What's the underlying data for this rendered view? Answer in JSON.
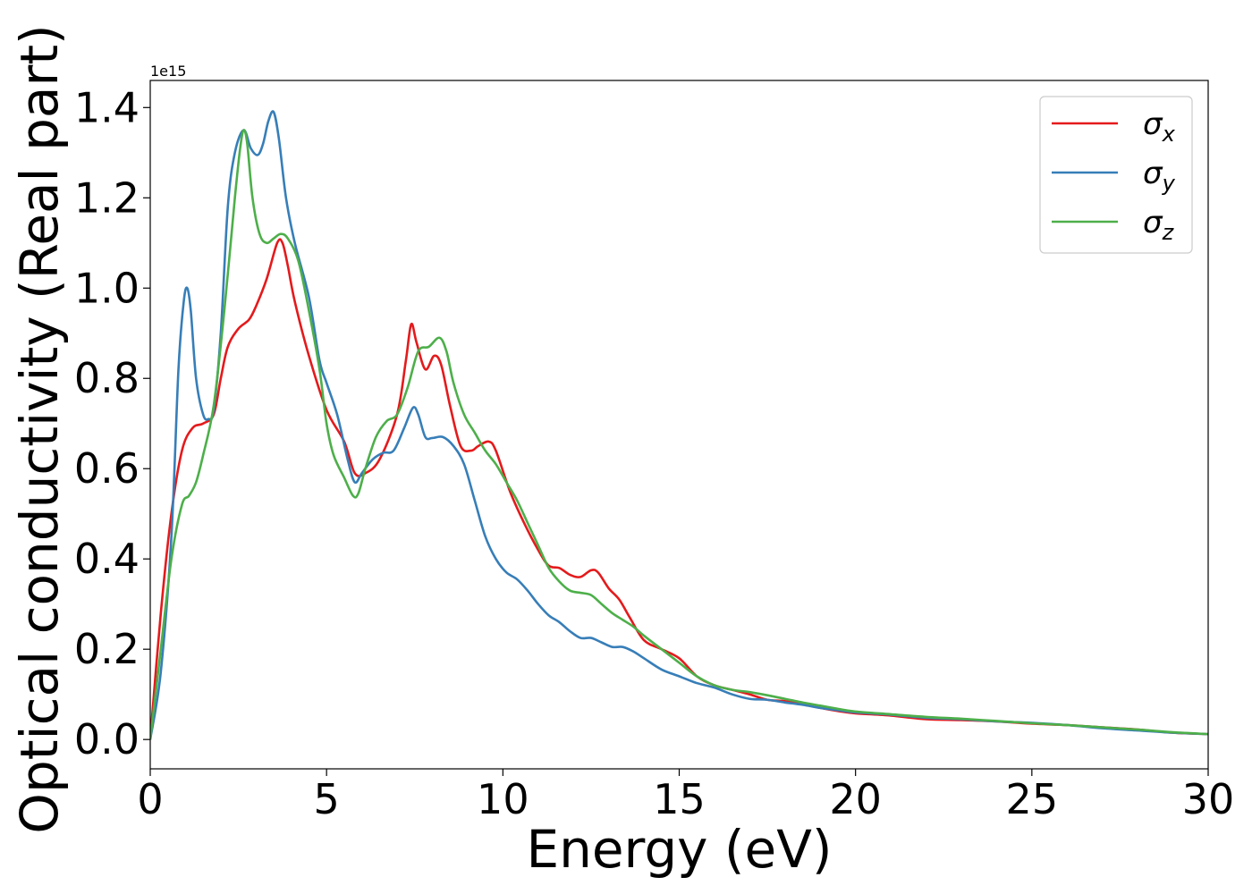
{
  "chart_data": {
    "type": "line",
    "xlabel": "Energy (eV)",
    "ylabel": "Optical conductivity (Real part)",
    "y_offset_text": "1e15",
    "xlim": [
      0,
      30
    ],
    "ylim": [
      -0.065,
      1.46
    ],
    "x_ticks": [
      "0",
      "5",
      "10",
      "15",
      "20",
      "25",
      "30"
    ],
    "y_ticks": [
      "0.0",
      "0.2",
      "0.4",
      "0.6",
      "0.8",
      "1.0",
      "1.2",
      "1.4"
    ],
    "grid": false,
    "legend_position": "top-right",
    "series": [
      {
        "name": "σx",
        "symbol": "σ",
        "subscript": "x",
        "color": "#e41a1c",
        "x": [
          0,
          0.3,
          0.6,
          0.9,
          1.2,
          1.5,
          1.8,
          2.0,
          2.2,
          2.5,
          2.8,
          3.0,
          3.3,
          3.6,
          3.75,
          3.9,
          4.1,
          4.5,
          5.0,
          5.5,
          5.8,
          6.1,
          6.5,
          7.0,
          7.25,
          7.4,
          7.55,
          7.8,
          8.05,
          8.25,
          8.5,
          8.8,
          9.1,
          9.3,
          9.6,
          9.8,
          10.2,
          10.6,
          11.0,
          11.3,
          11.6,
          11.9,
          12.2,
          12.5,
          12.7,
          13.0,
          13.3,
          13.6,
          14.0,
          14.5,
          15.0,
          15.5,
          16.0,
          16.5,
          17.0,
          17.5,
          18.0,
          18.5,
          19.0,
          19.5,
          20.0,
          21.0,
          22.0,
          23.0,
          24.0,
          25.0,
          26.0,
          27.0,
          28.0,
          29.0,
          30.0
        ],
        "values": [
          0.0,
          0.28,
          0.5,
          0.64,
          0.69,
          0.7,
          0.72,
          0.8,
          0.87,
          0.91,
          0.93,
          0.96,
          1.02,
          1.1,
          1.1,
          1.05,
          0.97,
          0.85,
          0.73,
          0.66,
          0.59,
          0.59,
          0.62,
          0.72,
          0.84,
          0.92,
          0.88,
          0.82,
          0.85,
          0.83,
          0.74,
          0.65,
          0.64,
          0.65,
          0.66,
          0.64,
          0.55,
          0.48,
          0.42,
          0.385,
          0.38,
          0.365,
          0.36,
          0.375,
          0.37,
          0.335,
          0.31,
          0.27,
          0.22,
          0.2,
          0.18,
          0.14,
          0.12,
          0.11,
          0.1,
          0.088,
          0.085,
          0.078,
          0.07,
          0.063,
          0.058,
          0.053,
          0.045,
          0.043,
          0.04,
          0.035,
          0.032,
          0.027,
          0.022,
          0.015,
          0.012
        ]
      },
      {
        "name": "σy",
        "symbol": "σ",
        "subscript": "y",
        "color": "#377eb8",
        "x": [
          0,
          0.3,
          0.6,
          0.8,
          0.95,
          1.05,
          1.15,
          1.3,
          1.5,
          1.65,
          1.8,
          2.0,
          2.2,
          2.4,
          2.65,
          2.85,
          3.05,
          3.2,
          3.35,
          3.5,
          3.65,
          3.85,
          4.1,
          4.5,
          4.8,
          5.0,
          5.3,
          5.6,
          5.8,
          6.0,
          6.3,
          6.6,
          6.9,
          7.2,
          7.45,
          7.6,
          7.8,
          8.0,
          8.3,
          8.6,
          8.9,
          9.2,
          9.5,
          9.8,
          10.1,
          10.4,
          10.7,
          11.0,
          11.3,
          11.6,
          11.9,
          12.2,
          12.5,
          12.8,
          13.1,
          13.4,
          13.7,
          14.0,
          14.5,
          15.0,
          15.5,
          16.0,
          16.5,
          17.0,
          17.5,
          18.0,
          18.5,
          19.0,
          19.5,
          20.0,
          21.0,
          22.0,
          23.0,
          24.0,
          25.0,
          26.0,
          27.0,
          28.0,
          29.0,
          30.0
        ],
        "values": [
          0.0,
          0.15,
          0.45,
          0.82,
          0.97,
          1.0,
          0.95,
          0.8,
          0.72,
          0.71,
          0.73,
          0.9,
          1.18,
          1.3,
          1.35,
          1.31,
          1.295,
          1.32,
          1.37,
          1.39,
          1.33,
          1.2,
          1.1,
          0.98,
          0.84,
          0.79,
          0.72,
          0.62,
          0.57,
          0.59,
          0.62,
          0.635,
          0.64,
          0.69,
          0.735,
          0.72,
          0.67,
          0.668,
          0.67,
          0.65,
          0.61,
          0.53,
          0.45,
          0.4,
          0.37,
          0.355,
          0.33,
          0.3,
          0.275,
          0.26,
          0.24,
          0.225,
          0.225,
          0.215,
          0.205,
          0.205,
          0.195,
          0.18,
          0.155,
          0.14,
          0.125,
          0.115,
          0.1,
          0.09,
          0.088,
          0.082,
          0.077,
          0.07,
          0.065,
          0.06,
          0.055,
          0.048,
          0.045,
          0.04,
          0.037,
          0.032,
          0.025,
          0.02,
          0.015,
          0.012
        ]
      },
      {
        "name": "σz",
        "symbol": "σ",
        "subscript": "z",
        "color": "#4daf4a",
        "x": [
          0,
          0.3,
          0.6,
          0.9,
          1.1,
          1.3,
          1.5,
          1.8,
          2.1,
          2.4,
          2.55,
          2.65,
          2.75,
          2.9,
          3.1,
          3.3,
          3.5,
          3.7,
          3.9,
          4.2,
          4.5,
          4.8,
          5.0,
          5.2,
          5.5,
          5.75,
          5.9,
          6.1,
          6.4,
          6.7,
          7.0,
          7.3,
          7.6,
          7.9,
          8.2,
          8.4,
          8.6,
          8.9,
          9.2,
          9.5,
          9.8,
          10.1,
          10.4,
          10.7,
          11.0,
          11.3,
          11.6,
          11.9,
          12.2,
          12.5,
          12.8,
          13.1,
          13.4,
          13.7,
          14.0,
          14.5,
          15.0,
          15.5,
          16.0,
          16.5,
          17.0,
          17.5,
          18.0,
          18.5,
          19.0,
          19.5,
          20.0,
          21.0,
          22.0,
          23.0,
          24.0,
          25.0,
          26.0,
          27.0,
          28.0,
          29.0,
          30.0
        ],
        "values": [
          0.0,
          0.2,
          0.4,
          0.52,
          0.54,
          0.57,
          0.63,
          0.74,
          0.95,
          1.2,
          1.31,
          1.35,
          1.32,
          1.2,
          1.12,
          1.1,
          1.11,
          1.12,
          1.11,
          1.06,
          0.95,
          0.82,
          0.7,
          0.63,
          0.58,
          0.54,
          0.545,
          0.6,
          0.67,
          0.705,
          0.72,
          0.78,
          0.86,
          0.87,
          0.89,
          0.86,
          0.79,
          0.72,
          0.68,
          0.64,
          0.61,
          0.57,
          0.53,
          0.48,
          0.43,
          0.38,
          0.35,
          0.33,
          0.325,
          0.32,
          0.3,
          0.28,
          0.265,
          0.25,
          0.23,
          0.2,
          0.17,
          0.14,
          0.12,
          0.11,
          0.105,
          0.098,
          0.09,
          0.082,
          0.075,
          0.068,
          0.062,
          0.056,
          0.05,
          0.046,
          0.041,
          0.036,
          0.032,
          0.027,
          0.022,
          0.016,
          0.012
        ]
      }
    ]
  }
}
